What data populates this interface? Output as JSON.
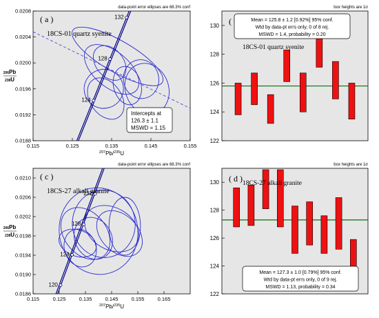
{
  "chart_data": [
    {
      "type": "concordia",
      "panel_label": "( a )",
      "note": "data-point error ellipses are 68.3% conf",
      "sample": "18CS-01 quartz syenite",
      "xlabel_sup": "207",
      "xlabel_el": "Pb/",
      "xlabel_sup2": "235",
      "xlabel_el2": "U",
      "ylabel_sup": "206",
      "ylabel_el": "Pb",
      "ylabel_sup2": "238",
      "ylabel_el2": "U",
      "xlim": [
        0.115,
        0.155
      ],
      "ylim": [
        0.0188,
        0.0208
      ],
      "xticks": [
        "0.115",
        "0.125",
        "0.135",
        "0.145",
        "0.155"
      ],
      "yticks": [
        "0.0188",
        "0.0192",
        "0.0196",
        "0.0200",
        "0.0204",
        "0.0208"
      ],
      "age_ticks": [
        {
          "label": "124",
          "x": 0.1304,
          "y": 0.01942
        },
        {
          "label": "128",
          "x": 0.1346,
          "y": 0.02006
        },
        {
          "label": "132",
          "x": 0.1388,
          "y": 0.0207
        }
      ],
      "concordia": [
        [
          0.125,
          0.0186
        ],
        [
          0.142,
          0.02115
        ]
      ],
      "discordia": [
        [
          0.115,
          0.02048
        ],
        [
          0.155,
          0.0193
        ]
      ],
      "ellipses": [
        {
          "cx": 0.1335,
          "cy": 0.01945,
          "rx": 0.004,
          "ry": 0.00035,
          "rot": 35
        },
        {
          "cx": 0.133,
          "cy": 0.0196,
          "rx": 0.005,
          "ry": 0.0003,
          "rot": 20
        },
        {
          "cx": 0.135,
          "cy": 0.0199,
          "rx": 0.0045,
          "ry": 0.0005,
          "rot": 50
        },
        {
          "cx": 0.1365,
          "cy": 0.0201,
          "rx": 0.004,
          "ry": 0.0008,
          "rot": 60
        },
        {
          "cx": 0.1345,
          "cy": 0.02,
          "rx": 0.0035,
          "ry": 0.0003,
          "rot": 40
        },
        {
          "cx": 0.139,
          "cy": 0.01965,
          "rx": 0.0035,
          "ry": 0.0003,
          "rot": 15
        },
        {
          "cx": 0.1425,
          "cy": 0.01975,
          "rx": 0.0045,
          "ry": 0.0003,
          "rot": 10
        },
        {
          "cx": 0.144,
          "cy": 0.0196,
          "rx": 0.0055,
          "ry": 0.0004,
          "rot": 20
        }
      ],
      "intercept_box": [
        "Intercepts at",
        "126.3 ± 1.1",
        "MSWD = 1.15"
      ]
    },
    {
      "type": "weighted_mean",
      "panel_label": "( b )",
      "note": "box heights are 1σ",
      "sample": "18CS-01 quartz syenite",
      "stats": [
        "Mean = 125.8 ± 1.2  [0.92%]  95% conf.",
        "Wtd by data-pt errs only, 0 of 8 rej.",
        "MSWD = 1.4, probability = 0.20"
      ],
      "ylim": [
        122,
        131
      ],
      "yticks": [
        "122",
        "124",
        "126",
        "128",
        "130"
      ],
      "mean": 125.8,
      "boxes": [
        [
          123.8,
          126.0
        ],
        [
          124.5,
          126.7
        ],
        [
          123.2,
          125.2
        ],
        [
          126.1,
          128.3
        ],
        [
          124.0,
          126.7
        ],
        [
          127.1,
          129.4
        ],
        [
          124.9,
          127.5
        ],
        [
          123.5,
          126.0
        ]
      ]
    },
    {
      "type": "concordia",
      "panel_label": "( c )",
      "note": "data-point error ellipses are 68.3% conf",
      "sample": "18CS-27 alkali granite",
      "xlabel_sup": "207",
      "xlabel_el": "Pb/",
      "xlabel_sup2": "235",
      "xlabel_el2": "U",
      "ylabel_sup": "206",
      "ylabel_el": "Pb",
      "ylabel_sup2": "238",
      "ylabel_el2": "U",
      "xlim": [
        0.115,
        0.175
      ],
      "ylim": [
        0.0186,
        0.0212
      ],
      "xticks": [
        "0.115",
        "0.125",
        "0.135",
        "0.145",
        "0.155",
        "0.165"
      ],
      "yticks": [
        "0.0186",
        "0.0190",
        "0.0194",
        "0.0198",
        "0.0202",
        "0.0206",
        "0.0210"
      ],
      "age_ticks": [
        {
          "label": "120",
          "x": 0.1255,
          "y": 0.01878
        },
        {
          "label": "124",
          "x": 0.1299,
          "y": 0.01941
        },
        {
          "label": "128",
          "x": 0.1343,
          "y": 0.02004
        },
        {
          "label": "132",
          "x": 0.1387,
          "y": 0.02067
        }
      ],
      "concordia": [
        [
          0.122,
          0.0183
        ],
        [
          0.148,
          0.0221
        ]
      ],
      "discordia": [],
      "ellipses": [
        {
          "cx": 0.14,
          "cy": 0.0199,
          "rx": 0.015,
          "ry": 0.0009,
          "rot": 10
        },
        {
          "cx": 0.142,
          "cy": 0.02005,
          "rx": 0.012,
          "ry": 0.0007,
          "rot": 5
        },
        {
          "cx": 0.135,
          "cy": 0.01985,
          "rx": 0.008,
          "ry": 0.0006,
          "rot": 40
        },
        {
          "cx": 0.145,
          "cy": 0.01995,
          "rx": 0.008,
          "ry": 0.0006,
          "rot": 60
        },
        {
          "cx": 0.15,
          "cy": 0.02,
          "rx": 0.006,
          "ry": 0.0006,
          "rot": 0
        },
        {
          "cx": 0.138,
          "cy": 0.01975,
          "rx": 0.007,
          "ry": 0.00045,
          "rot": 30
        },
        {
          "cx": 0.133,
          "cy": 0.01955,
          "rx": 0.006,
          "ry": 0.0004,
          "rot": 20
        },
        {
          "cx": 0.148,
          "cy": 0.01985,
          "rx": 0.007,
          "ry": 0.00055,
          "rot": 45
        },
        {
          "cx": 0.132,
          "cy": 0.01965,
          "rx": 0.005,
          "ry": 0.0004,
          "rot": 70
        }
      ],
      "intercept_box": []
    },
    {
      "type": "weighted_mean",
      "panel_label": "( d )",
      "note": "box heights are 1σ",
      "sample": "18CS-27 alkali granite",
      "stats": [
        "Mean = 127.3 ± 1.0  [0.79%]  95% conf.",
        "Wtd by data-pt errs only, 0 of 9 rej.",
        "MSWD = 1.13, probability = 0.34"
      ],
      "ylim": [
        122,
        131
      ],
      "yticks": [
        "122",
        "124",
        "126",
        "128",
        "130"
      ],
      "mean": 127.3,
      "boxes": [
        [
          126.8,
          129.6
        ],
        [
          126.9,
          129.8
        ],
        [
          128.1,
          130.9
        ],
        [
          126.8,
          130.9
        ],
        [
          124.9,
          128.3
        ],
        [
          125.5,
          128.6
        ],
        [
          124.9,
          127.6
        ],
        [
          125.2,
          128.9
        ],
        [
          123.2,
          125.9
        ]
      ]
    }
  ]
}
